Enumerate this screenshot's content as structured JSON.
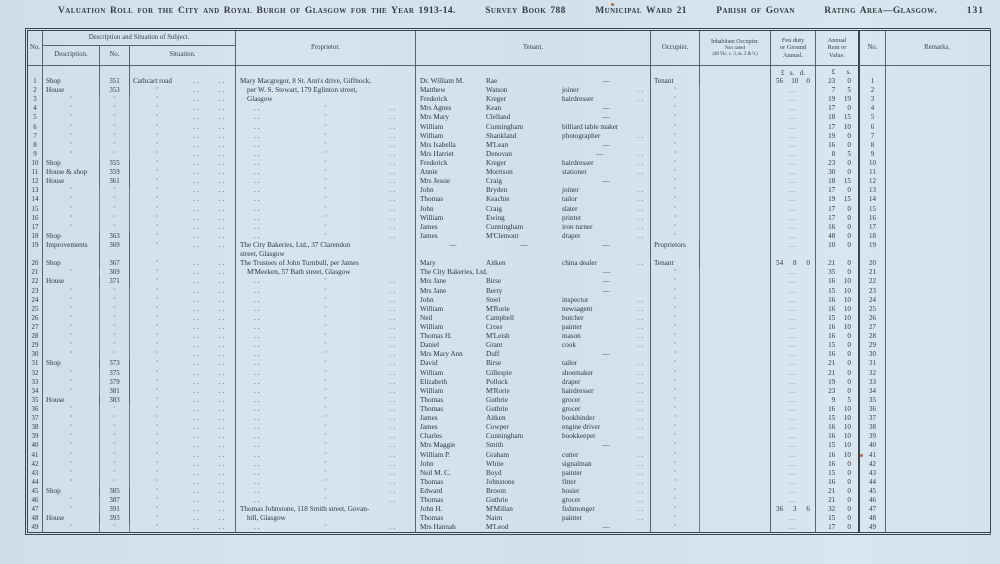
{
  "title": {
    "main": "Valuation Roll for the City and Royal Burgh of Glasgow for the Year 1913-14.",
    "survey": "Survey Book 788",
    "ward": "Municipal Ward 21",
    "parish": "Parish of Govan",
    "rating": "Rating Area—Glasgow.",
    "page_no": "131"
  },
  "table": {
    "ditto_mark": "″",
    "leader_dots": "..",
    "headers": {
      "no": "No.",
      "desc_group": "Description and Situation of Subject.",
      "description": "Description.",
      "no2": "No.",
      "situation": "Situation.",
      "proprietor": "Proprietor.",
      "tenant": "Tenant.",
      "occupier": "Occupier.",
      "inhabitant": [
        "Inhabitant Occupier.",
        "Not rated",
        "(48 Vic. c. 3, ss. 3 & 9.)"
      ],
      "feu": [
        "Feu duty",
        "or Ground",
        "Annual."
      ],
      "rent": [
        "Annual",
        "Rent or",
        "Value."
      ],
      "no3": "No.",
      "remarks": "Remarks."
    },
    "money": {
      "feu": [
        "£",
        "s.",
        "d."
      ],
      "rent": [
        "£",
        "s."
      ]
    },
    "rows": [
      {
        "n": 1,
        "d": "Shop",
        "no": "351",
        "s": "Cathcart road",
        "pt": "text",
        "p": "Mary Macgregor, 8 St. Ann's drive, Giffnock,",
        "t": [
          "Dr. William M.",
          "Rae",
          "—"
        ],
        "o": "Tenant",
        "f": "56 10 0",
        "r": "23 0"
      },
      {
        "n": 2,
        "d": "House",
        "no": "353",
        "s": "″",
        "pt": "cont",
        "p": "per W. S. Stewart, 179 Eglinton street,",
        "t": [
          "Matthew",
          "Watson",
          "joiner"
        ],
        "td": true,
        "o": "″",
        "f": "..",
        "r": "7 5"
      },
      {
        "n": 3,
        "d": "″",
        "no": "″",
        "s": "″",
        "pt": "cont",
        "p": "Glasgow",
        "t": [
          "Frederick",
          "Kreger",
          "hairdresser"
        ],
        "td": true,
        "o": "″",
        "f": "..",
        "r": "19 19"
      },
      {
        "n": 4,
        "d": "″",
        "no": "″",
        "s": "″",
        "pt": "ditto",
        "p": "",
        "t": [
          "Mrs Agnes",
          "Kean",
          "—"
        ],
        "o": "″",
        "f": "..",
        "r": "17 0"
      },
      {
        "n": 5,
        "d": "″",
        "no": "″",
        "s": "″",
        "pt": "ditto",
        "p": "",
        "t": [
          "Mrs Mary",
          "Clelland",
          "—"
        ],
        "o": "″",
        "f": "..",
        "r": "18 15"
      },
      {
        "n": 6,
        "d": "″",
        "no": "″",
        "s": "″",
        "pt": "ditto",
        "p": "",
        "t": [
          "William",
          "Cunningham",
          "billiard table maker"
        ],
        "o": "″",
        "f": "..",
        "r": "17 10"
      },
      {
        "n": 7,
        "d": "″",
        "no": "″",
        "s": "″",
        "pt": "ditto",
        "p": "",
        "t": [
          "William",
          "Shankland",
          "photographer"
        ],
        "td": true,
        "o": "″",
        "f": "..",
        "r": "19 0"
      },
      {
        "n": 8,
        "d": "″",
        "no": "″",
        "s": "″",
        "pt": "ditto",
        "p": "",
        "t": [
          "Mrs Isabella",
          "M'Lean",
          "—"
        ],
        "o": "″",
        "f": "..",
        "r": "16 0"
      },
      {
        "n": 9,
        "d": "″",
        "no": "″",
        "s": "″",
        "pt": "ditto",
        "p": "",
        "t": [
          "Mrs Harriet",
          "Denovan",
          "—"
        ],
        "td": true,
        "o": "″",
        "f": "..",
        "r": "8 5"
      },
      {
        "n": 10,
        "d": "Shop",
        "no": "355",
        "s": "″",
        "pt": "ditto",
        "p": "",
        "t": [
          "Frederick",
          "Kreger",
          "hairdresser"
        ],
        "td": true,
        "o": "″",
        "f": "..",
        "r": "23 0"
      },
      {
        "n": 11,
        "d": "House & shop",
        "no": "359",
        "s": "″",
        "pt": "ditto",
        "p": "",
        "t": [
          "Annie",
          "Morrison",
          "stationer"
        ],
        "td": true,
        "o": "″",
        "f": "..",
        "r": "30 0"
      },
      {
        "n": 12,
        "d": "House",
        "no": "361",
        "s": "″",
        "pt": "ditto",
        "p": "",
        "t": [
          "Mrs Jessie",
          "Craig",
          "—"
        ],
        "o": "″",
        "f": "..",
        "r": "18 15"
      },
      {
        "n": 13,
        "d": "″",
        "no": "″",
        "s": "″",
        "pt": "ditto",
        "p": "",
        "t": [
          "John",
          "Bryden",
          "joiner"
        ],
        "td": true,
        "o": "″",
        "f": "..",
        "r": "17 0"
      },
      {
        "n": 14,
        "d": "″",
        "no": "″",
        "s": "″",
        "pt": "ditto",
        "p": "",
        "t": [
          "Thomas",
          "Keachie",
          "tailor"
        ],
        "td": true,
        "o": "″",
        "f": "..",
        "r": "19 15"
      },
      {
        "n": 15,
        "d": "″",
        "no": "″",
        "s": "″",
        "pt": "ditto",
        "p": "",
        "t": [
          "John",
          "Craig",
          "slater"
        ],
        "td": true,
        "o": "″",
        "f": "..",
        "r": "17 0"
      },
      {
        "n": 16,
        "d": "″",
        "no": "″",
        "s": "″",
        "pt": "ditto",
        "p": "",
        "t": [
          "William",
          "Ewing",
          "printer"
        ],
        "td": true,
        "o": "″",
        "f": "..",
        "r": "17 0"
      },
      {
        "n": 17,
        "d": "″",
        "no": "″",
        "s": "″",
        "pt": "ditto",
        "p": "",
        "t": [
          "James",
          "Cunningham",
          "iron turner"
        ],
        "td": true,
        "o": "″",
        "f": "..",
        "r": "16 0"
      },
      {
        "n": 18,
        "d": "Shop",
        "no": "363",
        "s": "″",
        "pt": "ditto",
        "p": "",
        "t": [
          "James",
          "M'Clemont",
          "draper"
        ],
        "td": true,
        "o": "″",
        "f": "..",
        "r": "48 0"
      },
      {
        "n": 19,
        "d": "Improvements",
        "no": "369",
        "s": "″",
        "pt": "text",
        "p": "The City Bakeries, Ltd., 37 Clarendon\nstreet, Glasgow",
        "t": [
          "—",
          "—",
          "—"
        ],
        "o": "Proprietors",
        "f": "..",
        "r": "10 0",
        "h": 2
      },
      {
        "n": 20,
        "d": "Shop",
        "no": "367",
        "s": "″",
        "pt": "text",
        "p": "The Trustees of John Turnbull, per James",
        "t": [
          "Mary",
          "Aitken",
          "china dealer"
        ],
        "td": true,
        "o": "Tenant",
        "f": "54 8 0",
        "r": "21 0"
      },
      {
        "n": 21,
        "d": "″",
        "no": "369",
        "s": "″",
        "pt": "cont",
        "p": "M'Meeken, 57 Bath street, Glasgow",
        "t": [
          "The City Bakeries, Ltd.",
          "",
          "—"
        ],
        "o": "″",
        "f": "..",
        "r": "35 0"
      },
      {
        "n": 22,
        "d": "House",
        "no": "371",
        "s": "″",
        "pt": "ditto",
        "p": "",
        "t": [
          "Mrs Jane",
          "Birse",
          "—"
        ],
        "o": "″",
        "f": "..",
        "r": "16 10"
      },
      {
        "n": 23,
        "d": "″",
        "no": "″",
        "s": "″",
        "pt": "ditto",
        "p": "",
        "t": [
          "Mrs Jane",
          "Berry",
          "—"
        ],
        "o": "″",
        "f": "..",
        "r": "15 10"
      },
      {
        "n": 24,
        "d": "″",
        "no": "″",
        "s": "″",
        "pt": "ditto",
        "p": "",
        "t": [
          "John",
          "Steel",
          "inspector"
        ],
        "td": true,
        "o": "″",
        "f": "..",
        "r": "16 10"
      },
      {
        "n": 25,
        "d": "″",
        "no": "″",
        "s": "″",
        "pt": "ditto",
        "p": "",
        "t": [
          "William",
          "M'Rorie",
          "newsagent"
        ],
        "td": true,
        "o": "″",
        "f": "..",
        "r": "16 10"
      },
      {
        "n": 26,
        "d": "″",
        "no": "″",
        "s": "″",
        "pt": "ditto",
        "p": "",
        "t": [
          "Neil",
          "Campbell",
          "butcher"
        ],
        "td": true,
        "o": "″",
        "f": "..",
        "r": "15 10"
      },
      {
        "n": 27,
        "d": "″",
        "no": "″",
        "s": "″",
        "pt": "ditto",
        "p": "",
        "t": [
          "William",
          "Cross",
          "painter"
        ],
        "td": true,
        "o": "″",
        "f": "..",
        "r": "16 10"
      },
      {
        "n": 28,
        "d": "″",
        "no": "″",
        "s": "″",
        "pt": "ditto",
        "p": "",
        "t": [
          "Thomas H.",
          "M'Leish",
          "mason"
        ],
        "td": true,
        "o": "″",
        "f": "..",
        "r": "16 0"
      },
      {
        "n": 29,
        "d": "″",
        "no": "″",
        "s": "″",
        "pt": "ditto",
        "p": "",
        "t": [
          "Daniel",
          "Grant",
          "cook"
        ],
        "td": true,
        "o": "″",
        "f": "..",
        "r": "15 0"
      },
      {
        "n": 30,
        "d": "″",
        "no": "″",
        "s": "″",
        "pt": "ditto",
        "p": "",
        "t": [
          "Mrs Mary Ann",
          "Duff",
          "—"
        ],
        "o": "″",
        "f": "..",
        "r": "16 0"
      },
      {
        "n": 31,
        "d": "Shop",
        "no": "373",
        "s": "″",
        "pt": "ditto",
        "p": "",
        "t": [
          "David",
          "Birse",
          "tailor"
        ],
        "td": true,
        "o": "″",
        "f": "..",
        "r": "21 0"
      },
      {
        "n": 32,
        "d": "″",
        "no": "375",
        "s": "″",
        "pt": "ditto",
        "p": "",
        "t": [
          "William",
          "Gillespie",
          "shoemaker"
        ],
        "td": true,
        "o": "″",
        "f": "..",
        "r": "21 0"
      },
      {
        "n": 33,
        "d": "″",
        "no": "379",
        "s": "″",
        "pt": "ditto",
        "p": "",
        "t": [
          "Elizabeth",
          "Pollock",
          "draper"
        ],
        "td": true,
        "o": "″",
        "f": "..",
        "r": "19 0"
      },
      {
        "n": 34,
        "d": "″",
        "no": "381",
        "s": "″",
        "pt": "ditto",
        "p": "",
        "t": [
          "William",
          "M'Rorie",
          "hairdresser"
        ],
        "td": true,
        "o": "″",
        "f": "..",
        "r": "23 0"
      },
      {
        "n": 35,
        "d": "House",
        "no": "383",
        "s": "″",
        "pt": "ditto",
        "p": "",
        "t": [
          "Thomas",
          "Guthrie",
          "grocer"
        ],
        "td": true,
        "o": "″",
        "f": "..",
        "r": "9 5"
      },
      {
        "n": 36,
        "d": "″",
        "no": "″",
        "s": "″",
        "pt": "ditto",
        "p": "",
        "t": [
          "Thomas",
          "Guthrie",
          "grocer"
        ],
        "td": true,
        "o": "″",
        "f": "..",
        "r": "16 10"
      },
      {
        "n": 37,
        "d": "″",
        "no": "″",
        "s": "″",
        "pt": "ditto",
        "p": "",
        "t": [
          "James",
          "Aitken",
          "bookbinder"
        ],
        "td": true,
        "o": "″",
        "f": "..",
        "r": "15 10"
      },
      {
        "n": 38,
        "d": "″",
        "no": "″",
        "s": "″",
        "pt": "ditto",
        "p": "",
        "t": [
          "James",
          "Cowper",
          "engine driver"
        ],
        "td": true,
        "o": "″",
        "f": "..",
        "r": "16 10"
      },
      {
        "n": 39,
        "d": "″",
        "no": "″",
        "s": "″",
        "pt": "ditto",
        "p": "",
        "t": [
          "Charles",
          "Cunningham",
          "bookkeeper"
        ],
        "td": true,
        "o": "″",
        "f": "..",
        "r": "16 10"
      },
      {
        "n": 40,
        "d": "″",
        "no": "″",
        "s": "″",
        "pt": "ditto",
        "p": "",
        "t": [
          "Mrs Maggie",
          "Smith",
          "—"
        ],
        "o": "″",
        "f": "..",
        "r": "15 10"
      },
      {
        "n": 41,
        "d": "″",
        "no": "″",
        "s": "″",
        "pt": "ditto",
        "p": "",
        "t": [
          "William P.",
          "Graham",
          "cutter"
        ],
        "td": true,
        "o": "″",
        "f": "..",
        "r": "16 10"
      },
      {
        "n": 42,
        "d": "″",
        "no": "″",
        "s": "″",
        "pt": "ditto",
        "p": "",
        "t": [
          "John",
          "White",
          "signalman"
        ],
        "td": true,
        "o": "″",
        "f": "..",
        "r": "16 0"
      },
      {
        "n": 43,
        "d": "″",
        "no": "″",
        "s": "″",
        "pt": "ditto",
        "p": "",
        "t": [
          "Neil M. C.",
          "Boyd",
          "painter"
        ],
        "td": true,
        "o": "″",
        "f": "..",
        "r": "15 0"
      },
      {
        "n": 44,
        "d": "″",
        "no": "″",
        "s": "″",
        "pt": "ditto",
        "p": "",
        "t": [
          "Thomas",
          "Johnstone",
          "fitter"
        ],
        "td": true,
        "o": "″",
        "f": "..",
        "r": "16 0"
      },
      {
        "n": 45,
        "d": "Shop",
        "no": "385",
        "s": "″",
        "pt": "ditto",
        "p": "",
        "t": [
          "Edward",
          "Broom",
          "hosier"
        ],
        "td": true,
        "o": "″",
        "f": "..",
        "r": "21 0"
      },
      {
        "n": 46,
        "d": "″",
        "no": "387",
        "s": "″",
        "pt": "ditto",
        "p": "",
        "t": [
          "Thomas",
          "Guthrie",
          "grocer"
        ],
        "td": true,
        "o": "″",
        "f": "..",
        "r": "21 0"
      },
      {
        "n": 47,
        "d": "″",
        "no": "391",
        "s": "″",
        "pt": "text",
        "p": "Thomas Johnstone, 118 Smith street, Govan-",
        "t": [
          "John H.",
          "M'Millan",
          "fishmonger"
        ],
        "td": true,
        "o": "″",
        "f": "36 3 6",
        "r": "32 0"
      },
      {
        "n": 48,
        "d": "House",
        "no": "393",
        "s": "″",
        "pt": "cont",
        "p": "hill, Glasgow",
        "t": [
          "Thomas",
          "Nairn",
          "painter"
        ],
        "td": true,
        "o": "″",
        "f": "..",
        "r": "15 0"
      },
      {
        "n": 49,
        "d": "″",
        "no": "″",
        "s": "″",
        "pt": "ditto",
        "p": "",
        "t": [
          "Mrs Hannah",
          "M'Leod",
          "—"
        ],
        "o": "″",
        "f": "..",
        "r": "17 0"
      }
    ]
  }
}
